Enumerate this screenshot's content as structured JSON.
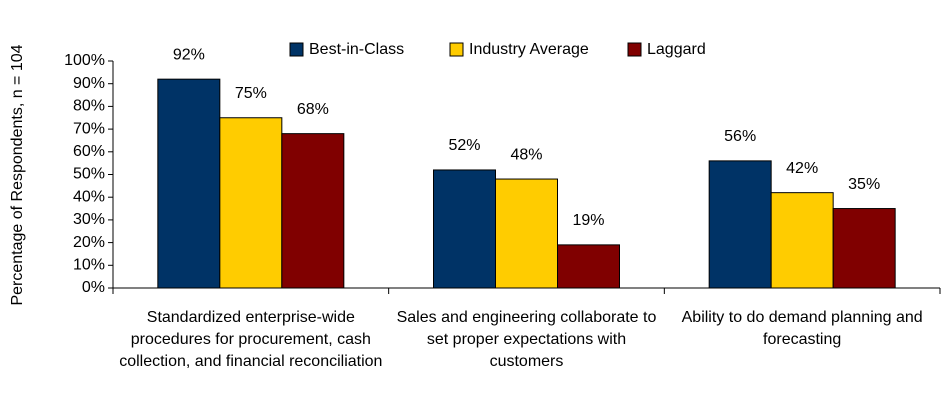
{
  "chart_data": {
    "type": "bar",
    "y_label": "Percentage of Respondents, n = 104",
    "categories": [
      "Standardized enterprise-wide procedures for procurement, cash collection, and financial reconciliation",
      "Sales and engineering collaborate to set proper expectations with customers",
      "Ability to do demand planning and forecasting"
    ],
    "series": [
      {
        "name": "Best-in-Class",
        "color": "#003366",
        "values": [
          92,
          52,
          56
        ],
        "value_labels": [
          "92%",
          "52%",
          "56%"
        ]
      },
      {
        "name": "Industry Average",
        "color": "#ffcc00",
        "values": [
          75,
          48,
          42
        ],
        "value_labels": [
          "75%",
          "48%",
          "42%"
        ]
      },
      {
        "name": "Laggard",
        "color": "#800000",
        "values": [
          68,
          19,
          35
        ],
        "value_labels": [
          "68%",
          "19%",
          "35%"
        ]
      }
    ],
    "ylim": [
      0,
      100
    ],
    "yticks": [
      {
        "value": 0,
        "label": "0%"
      },
      {
        "value": 10,
        "label": "10%"
      },
      {
        "value": 20,
        "label": "20%"
      },
      {
        "value": 30,
        "label": "30%"
      },
      {
        "value": 40,
        "label": "40%"
      },
      {
        "value": 50,
        "label": "50%"
      },
      {
        "value": 60,
        "label": "60%"
      },
      {
        "value": 70,
        "label": "70%"
      },
      {
        "value": 80,
        "label": "80%"
      },
      {
        "value": 90,
        "label": "90%"
      },
      {
        "value": 100,
        "label": "100%"
      }
    ],
    "legend": "top"
  }
}
